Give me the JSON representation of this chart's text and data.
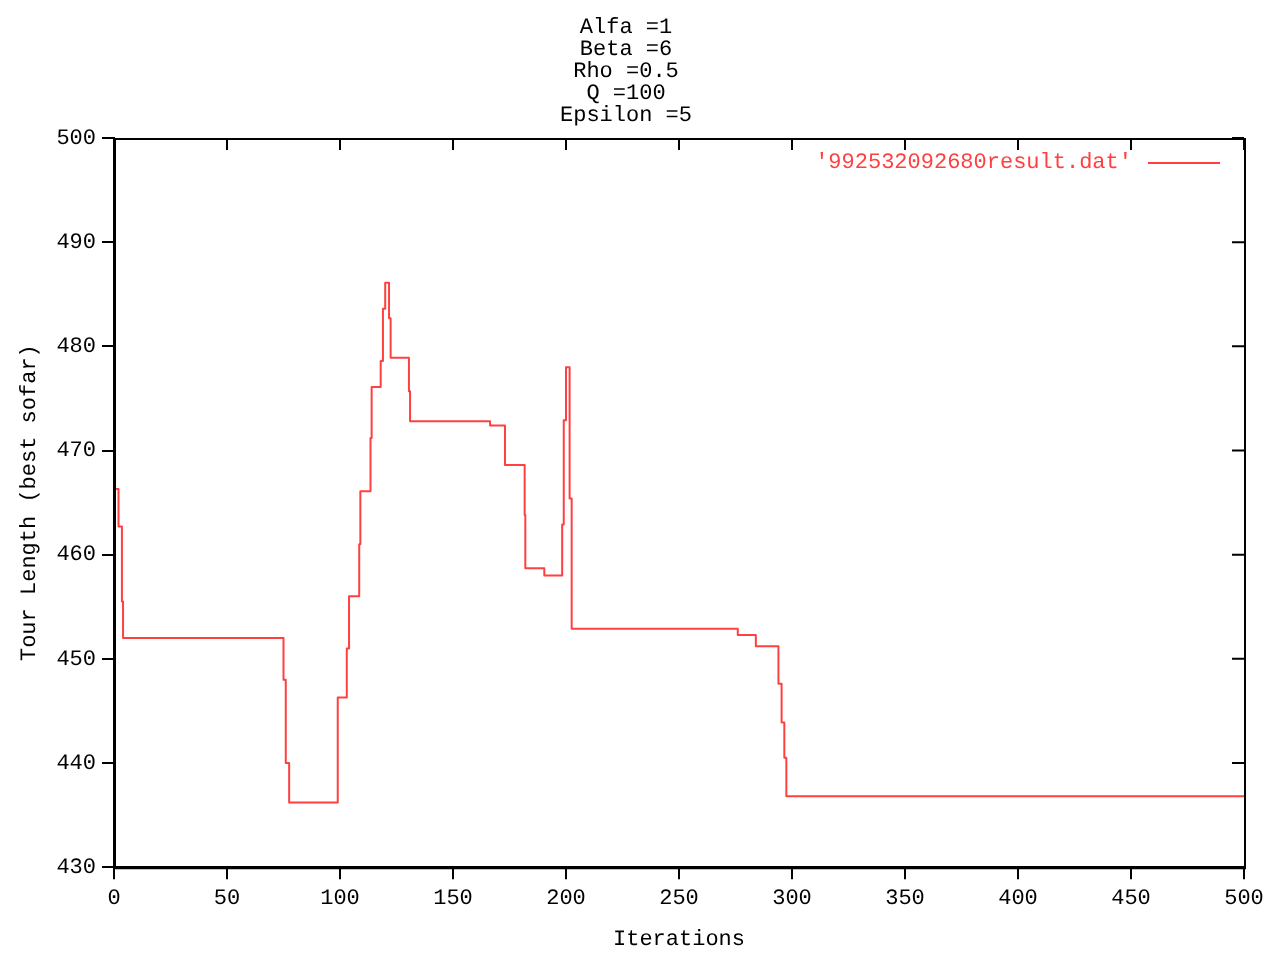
{
  "chart_data": {
    "type": "step",
    "title": "Alfa =1\nBeta =6\nRho =0.5\nQ =100\nEpsilon =5",
    "xlabel": "Iterations",
    "ylabel": "Tour Length (best sofar)",
    "x": [
      0,
      2,
      3.5,
      4,
      75,
      76,
      77.5,
      99,
      103,
      104,
      108.5,
      109,
      113.5,
      114,
      118,
      119,
      120,
      121.7,
      122.4,
      130.5,
      131,
      166.4,
      173,
      181.7,
      182,
      190.4,
      198.3,
      199,
      200,
      201.6,
      202.5,
      276,
      284,
      294,
      295.4,
      296.6,
      297.5,
      500
    ],
    "series": [
      {
        "name": "'992532092680result.dat'",
        "color": "#ff4040",
        "values": [
          466.3,
          462.7,
          455.5,
          452,
          448,
          440,
          436.2,
          446.3,
          451,
          456,
          461,
          466.1,
          471.2,
          476.1,
          478.6,
          483.6,
          486.1,
          482.7,
          478.9,
          475.7,
          472.8,
          472.4,
          468.6,
          463.8,
          458.7,
          458,
          462.9,
          472.9,
          478,
          465.4,
          452.9,
          452.3,
          451.2,
          447.6,
          443.9,
          440.5,
          436.8,
          436.8
        ]
      }
    ],
    "xlim": [
      0,
      500
    ],
    "xticks": [
      0,
      50,
      100,
      150,
      200,
      250,
      300,
      350,
      400,
      450,
      500
    ],
    "ylim": [
      430,
      500
    ],
    "yticks": [
      430,
      440,
      450,
      460,
      470,
      480,
      490,
      500
    ],
    "grid": false,
    "legend": "top right"
  }
}
